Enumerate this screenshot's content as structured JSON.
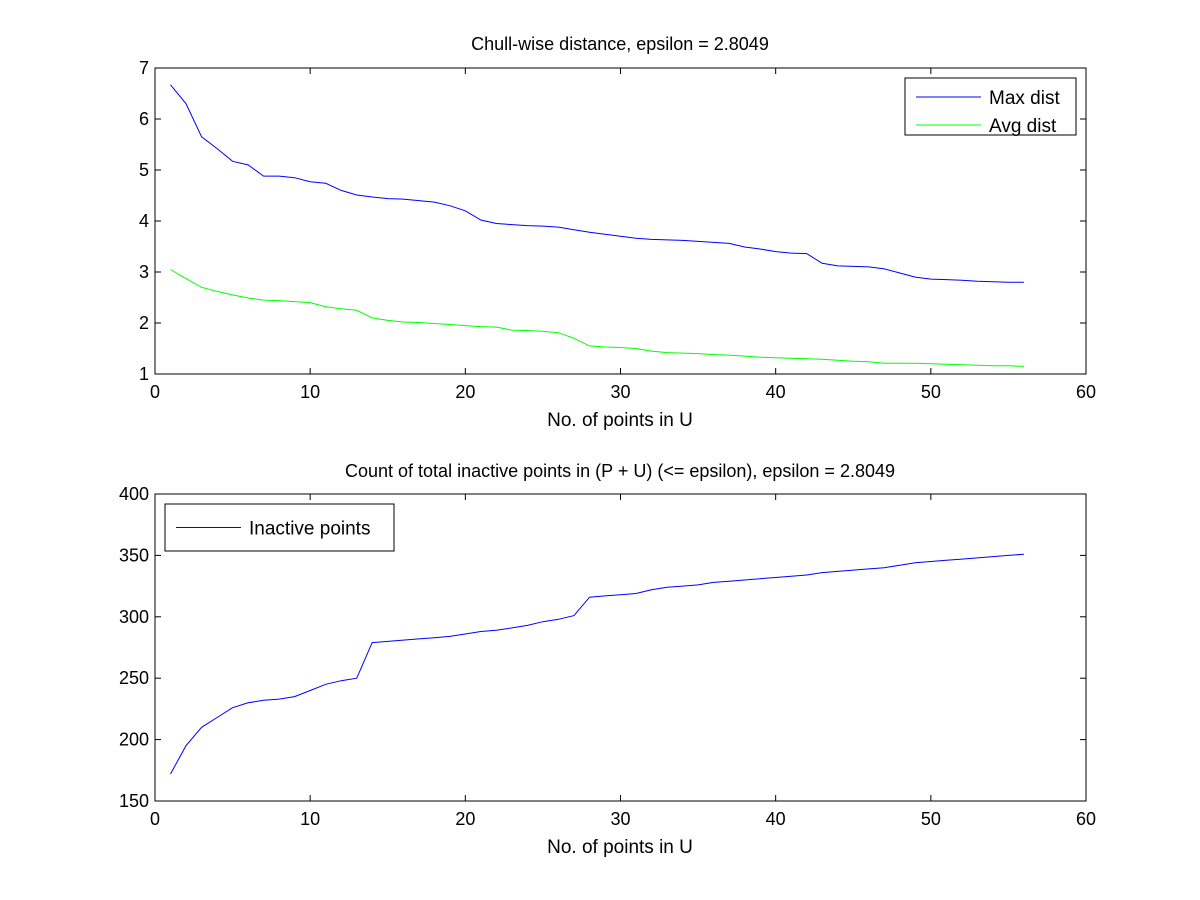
{
  "chart_data": [
    {
      "type": "line",
      "title": "Chull-wise distance, epsilon = 2.8049",
      "xlabel": "No. of points in U",
      "ylabel": "",
      "xlim": [
        0,
        60
      ],
      "ylim": [
        1,
        7
      ],
      "xticks": [
        0,
        10,
        20,
        30,
        40,
        50,
        60
      ],
      "yticks": [
        1,
        2,
        3,
        4,
        5,
        6,
        7
      ],
      "grid": false,
      "legend_position": "top-right",
      "x": [
        1,
        2,
        3,
        4,
        5,
        6,
        7,
        8,
        9,
        10,
        11,
        12,
        13,
        14,
        15,
        16,
        17,
        18,
        19,
        20,
        21,
        22,
        23,
        24,
        25,
        26,
        27,
        28,
        29,
        30,
        31,
        32,
        33,
        34,
        35,
        36,
        37,
        38,
        39,
        40,
        41,
        42,
        43,
        44,
        45,
        46,
        47,
        48,
        49,
        50,
        51,
        52,
        53,
        54,
        55,
        56
      ],
      "series": [
        {
          "name": "Max dist",
          "color": "#0000ff",
          "values": [
            6.67,
            6.3,
            5.65,
            5.42,
            5.17,
            5.1,
            4.88,
            4.88,
            4.85,
            4.77,
            4.74,
            4.6,
            4.51,
            4.47,
            4.44,
            4.43,
            4.4,
            4.37,
            4.3,
            4.2,
            4.02,
            3.95,
            3.93,
            3.91,
            3.9,
            3.88,
            3.83,
            3.78,
            3.74,
            3.7,
            3.66,
            3.64,
            3.63,
            3.62,
            3.6,
            3.58,
            3.56,
            3.49,
            3.45,
            3.4,
            3.37,
            3.36,
            3.17,
            3.12,
            3.11,
            3.1,
            3.06,
            2.98,
            2.9,
            2.86,
            2.85,
            2.84,
            2.82,
            2.81,
            2.8,
            2.8
          ]
        },
        {
          "name": "Avg dist",
          "color": "#00ff00",
          "values": [
            3.05,
            2.87,
            2.7,
            2.62,
            2.55,
            2.49,
            2.45,
            2.44,
            2.42,
            2.4,
            2.32,
            2.28,
            2.25,
            2.1,
            2.05,
            2.02,
            2.01,
            1.99,
            1.97,
            1.95,
            1.93,
            1.92,
            1.86,
            1.85,
            1.84,
            1.81,
            1.7,
            1.55,
            1.53,
            1.52,
            1.5,
            1.45,
            1.42,
            1.41,
            1.4,
            1.38,
            1.37,
            1.35,
            1.33,
            1.32,
            1.31,
            1.3,
            1.29,
            1.27,
            1.25,
            1.24,
            1.21,
            1.21,
            1.21,
            1.2,
            1.19,
            1.18,
            1.17,
            1.16,
            1.16,
            1.15
          ]
        }
      ]
    },
    {
      "type": "line",
      "title": "Count of total inactive points in (P + U) (<= epsilon), epsilon = 2.8049",
      "xlabel": "No. of points in U",
      "ylabel": "",
      "xlim": [
        0,
        60
      ],
      "ylim": [
        150,
        400
      ],
      "xticks": [
        0,
        10,
        20,
        30,
        40,
        50,
        60
      ],
      "yticks": [
        150,
        200,
        250,
        300,
        350,
        400
      ],
      "grid": false,
      "legend_position": "top-left",
      "x": [
        1,
        2,
        3,
        4,
        5,
        6,
        7,
        8,
        9,
        10,
        11,
        12,
        13,
        14,
        15,
        16,
        17,
        18,
        19,
        20,
        21,
        22,
        23,
        24,
        25,
        26,
        27,
        28,
        29,
        30,
        31,
        32,
        33,
        34,
        35,
        36,
        37,
        38,
        39,
        40,
        41,
        42,
        43,
        44,
        45,
        46,
        47,
        48,
        49,
        50,
        51,
        52,
        53,
        54,
        55,
        56
      ],
      "series": [
        {
          "name": "Inactive points",
          "color": "#0000ff",
          "values": [
            172,
            195,
            210,
            218,
            226,
            230,
            232,
            233,
            235,
            240,
            245,
            248,
            250,
            279,
            280,
            281,
            282,
            283,
            284,
            286,
            288,
            289,
            291,
            293,
            296,
            298,
            301,
            316,
            317,
            318,
            319,
            322,
            324,
            325,
            326,
            328,
            329,
            330,
            331,
            332,
            333,
            334,
            336,
            337,
            338,
            339,
            340,
            342,
            344,
            345,
            346,
            347,
            348,
            349,
            350,
            351
          ]
        }
      ]
    }
  ]
}
